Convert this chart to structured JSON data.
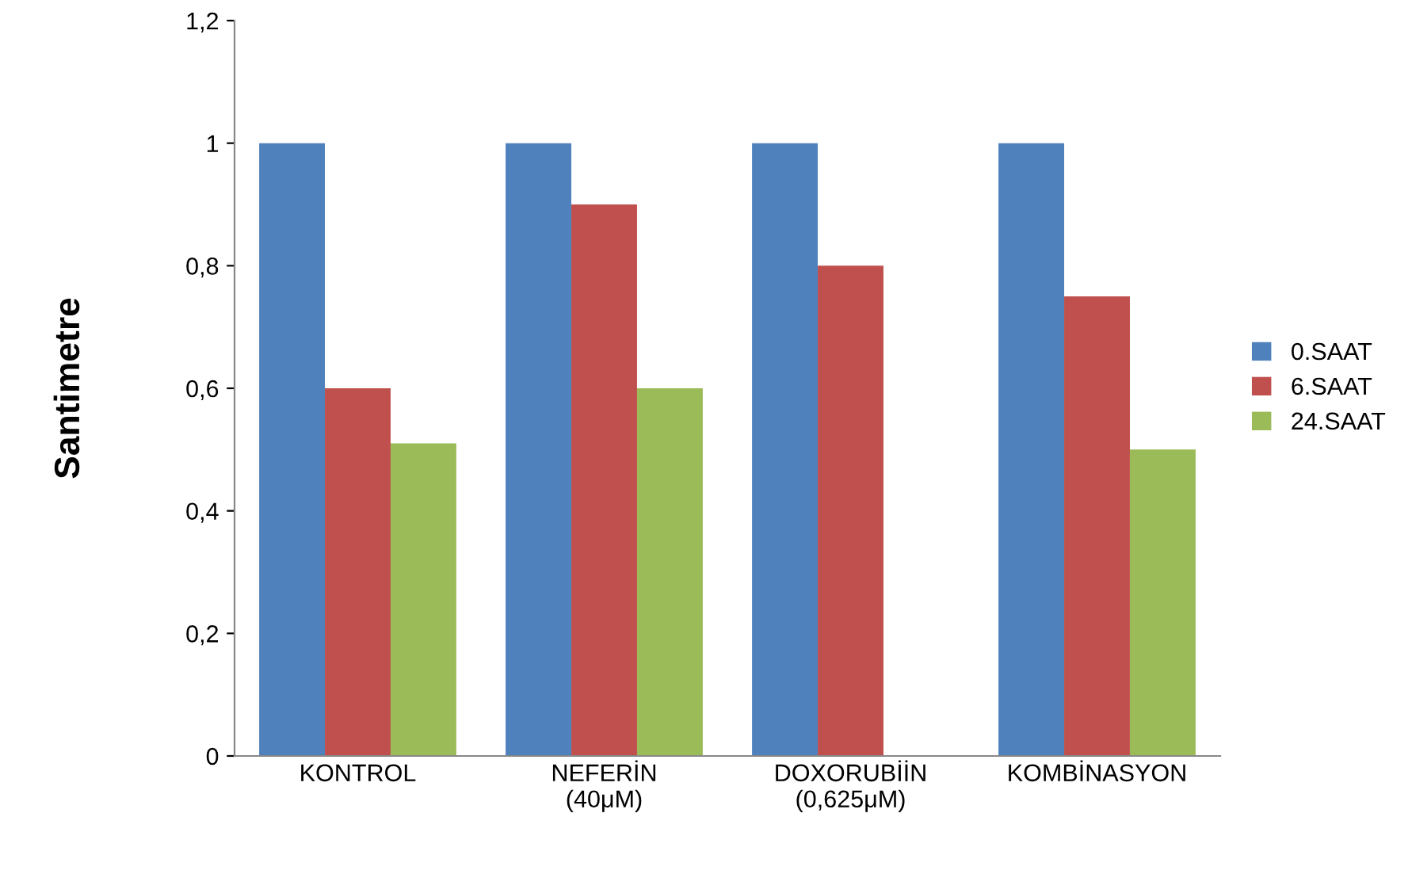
{
  "chart_data": {
    "type": "bar",
    "ylabel": "Santimetre",
    "categories": [
      "KONTROL",
      "NEFERİN\n(40μM)",
      "DOXORUBİİN\n(0,625μM)",
      "KOMBİNASYON"
    ],
    "series": [
      {
        "name": "0.SAAT",
        "color": "#4f81bd",
        "values": [
          1,
          1,
          1,
          1
        ]
      },
      {
        "name": "6.SAAT",
        "color": "#c0504d",
        "values": [
          0.6,
          0.9,
          0.8,
          0.75
        ]
      },
      {
        "name": "24.SAAT",
        "color": "#9bbb59",
        "values": [
          0.51,
          0.6,
          null,
          0.5
        ]
      }
    ],
    "ylim": [
      0,
      1.2
    ],
    "yticks": [
      {
        "value": 0,
        "label": "0"
      },
      {
        "value": 0.2,
        "label": "0,2"
      },
      {
        "value": 0.4,
        "label": "0,4"
      },
      {
        "value": 0.6,
        "label": "0,6"
      },
      {
        "value": 0.8,
        "label": "0,8"
      },
      {
        "value": 1,
        "label": "1"
      },
      {
        "value": 1.2,
        "label": "1,2"
      }
    ],
    "grid": false,
    "legend": "right"
  }
}
